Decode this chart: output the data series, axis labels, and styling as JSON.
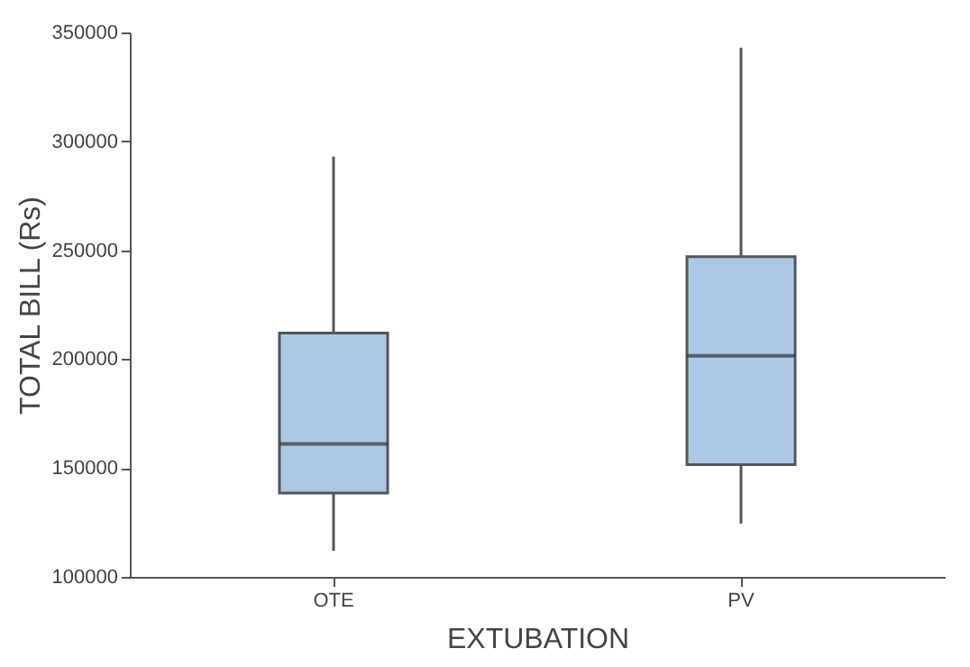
{
  "chart_data": {
    "type": "box",
    "xlabel": "EXTUBATION",
    "ylabel": "TOTAL BILL (Rs)",
    "categories": [
      "OTE",
      "PV"
    ],
    "boxes": [
      {
        "low": 112000,
        "q1": 138500,
        "median": 161000,
        "q3": 212000,
        "high": 293000
      },
      {
        "low": 124500,
        "q1": 151500,
        "median": 201500,
        "q3": 247000,
        "high": 343000
      }
    ],
    "color": "#adc8e7",
    "ylim": [
      100000,
      350000
    ],
    "yticks": [
      100000,
      150000,
      200000,
      250000,
      300000,
      350000
    ],
    "grid": false
  }
}
